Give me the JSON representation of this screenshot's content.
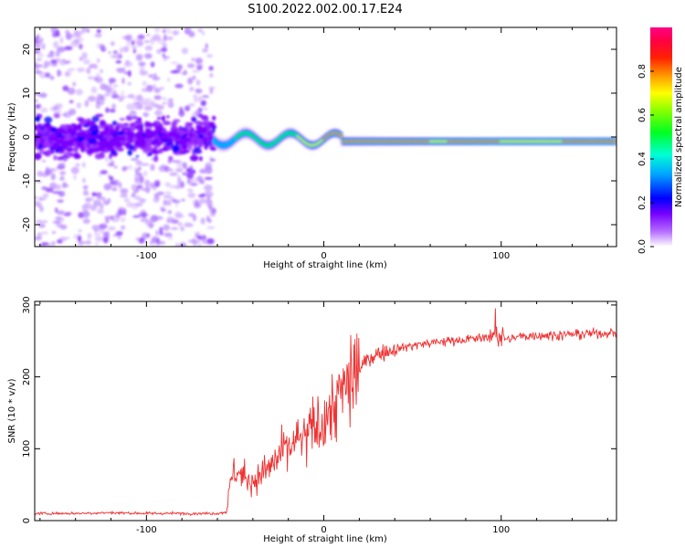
{
  "title": "S100.2022.002.00.17.E24",
  "colors": {
    "snr_line": "#ee3333",
    "spectrogram_colormap": [
      "#ffffff",
      "#8800ff",
      "#0000ff",
      "#00d5ff",
      "#00ff44",
      "#ffff00",
      "#ff6600",
      "#dd0000",
      "#ff0066"
    ]
  },
  "chart_data": [
    {
      "type": "heatmap",
      "name": "spectrogram",
      "xlabel": "Height of straight line (km)",
      "ylabel": "Frequency (Hz)",
      "xlim": [
        -163,
        165
      ],
      "ylim": [
        -25,
        25
      ],
      "xticks": [
        -100,
        0,
        100
      ],
      "yticks": [
        -20,
        -10,
        0,
        10,
        20
      ],
      "grid": false,
      "colorbar": {
        "label": "Normalized spectral amplitude",
        "range": [
          0.0,
          1.0
        ],
        "ticks": [
          0.0,
          0.2,
          0.4,
          0.6,
          0.8
        ]
      },
      "description_values": {
        "noisy_region_x": [
          -163,
          -62
        ],
        "tone_frequency_hz": -1,
        "tone_start_x": -62,
        "tone_end_x": 165
      }
    },
    {
      "type": "line",
      "name": "snr",
      "xlabel": "Height of straight line (km)",
      "ylabel": "SNR (10 * v/v)",
      "xlim": [
        -163,
        165
      ],
      "ylim": [
        0,
        305
      ],
      "xticks": [
        -100,
        0,
        100
      ],
      "yticks": [
        0,
        100,
        200,
        300
      ],
      "grid": false,
      "series": [
        {
          "x": [
            -163,
            -140,
            -120,
            -100,
            -80,
            -60,
            -55,
            -52,
            -50,
            -45,
            -40,
            -35,
            -30,
            -25,
            -20,
            -15,
            -10,
            -5,
            0,
            5,
            10,
            15,
            20,
            25,
            30,
            40,
            50,
            60,
            70,
            80,
            90,
            95,
            98,
            100,
            105,
            110,
            120,
            130,
            140,
            150,
            165
          ],
          "values": [
            10,
            10,
            11,
            10,
            10,
            10,
            12,
            60,
            70,
            60,
            55,
            65,
            75,
            90,
            100,
            110,
            115,
            130,
            140,
            155,
            175,
            195,
            210,
            225,
            232,
            238,
            244,
            247,
            250,
            252,
            254,
            258,
            262,
            255,
            252,
            256,
            258,
            258,
            259,
            260,
            262
          ]
        }
      ]
    }
  ]
}
